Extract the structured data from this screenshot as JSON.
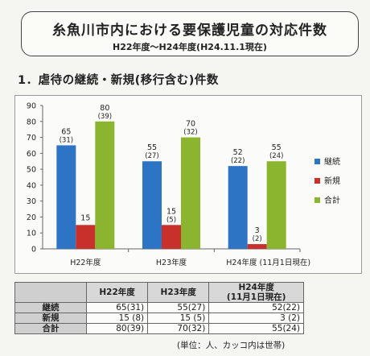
{
  "header": {
    "title": "糸魚川市内における要保護児童の対応件数",
    "subtitle": "H22年度〜H24年度(H24.11.1現在)"
  },
  "section": {
    "title": "1．虐待の継続・新規(移行含む)件数"
  },
  "chart_data": {
    "type": "bar",
    "title": "",
    "xlabel": "",
    "ylabel": "",
    "ylim": [
      0,
      90
    ],
    "yticks": [
      0,
      10,
      20,
      30,
      40,
      50,
      60,
      70,
      80,
      90
    ],
    "grid": false,
    "legend_position": "right",
    "categories": [
      "H22年度",
      "H23年度",
      "H24年度 (11月1日現在)"
    ],
    "series": [
      {
        "name": "継続",
        "color": "#2e74c4",
        "values": [
          65,
          55,
          52
        ],
        "households": [
          "(31)",
          "(27)",
          "(22)"
        ]
      },
      {
        "name": "新規",
        "color": "#c8312b",
        "values": [
          15,
          15,
          3
        ],
        "households": [
          "",
          "(5)",
          "(2)"
        ]
      },
      {
        "name": "合計",
        "color": "#8bb52e",
        "values": [
          80,
          70,
          55
        ],
        "households": [
          "(39)",
          "(32)",
          "(24)"
        ]
      }
    ]
  },
  "table": {
    "headers": [
      "",
      "H22年度",
      "H23年度",
      "H24年度\n(11月1日現在)"
    ],
    "rows": [
      {
        "label": "継続",
        "cells": [
          "65(31)",
          "55(27)",
          "52(22)"
        ]
      },
      {
        "label": "新規",
        "cells": [
          "15 (8)",
          "15 (5)",
          "3 (2)"
        ]
      },
      {
        "label": "合計",
        "cells": [
          "80(39)",
          "70(32)",
          "55(24)"
        ]
      }
    ]
  },
  "note": "(単位：人、カッコ内は世帯)"
}
